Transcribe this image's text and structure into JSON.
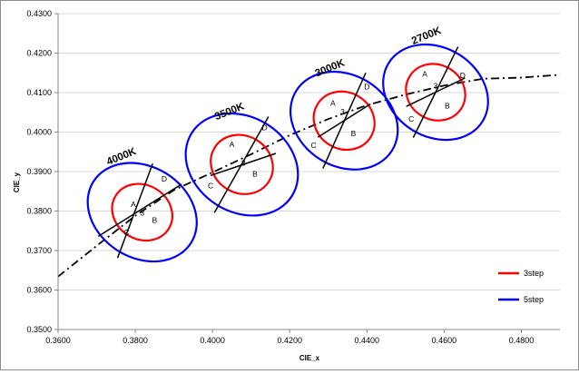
{
  "chart_data": {
    "type": "scatter",
    "title": "",
    "xlabel": "CIE_x",
    "ylabel": "CIE_y",
    "xlim": [
      0.36,
      0.49
    ],
    "ylim": [
      0.35,
      0.43
    ],
    "x_ticks": [
      "0.3600",
      "0.3800",
      "0.4000",
      "0.4200",
      "0.4400",
      "0.4600",
      "0.4800"
    ],
    "y_ticks": [
      "0.3500",
      "0.3600",
      "0.3700",
      "0.3800",
      "0.3900",
      "0.4000",
      "0.4100",
      "0.4200",
      "0.4300"
    ],
    "grid": "horizontal",
    "legend_position": "bottom-right",
    "colors": {
      "3step": "#ff0000",
      "5step": "#0000ff",
      "planckian": "#000000",
      "grid": "#d9d9d9"
    },
    "planckian_locus": {
      "x": [
        0.36,
        0.37,
        0.38,
        0.39,
        0.4,
        0.41,
        0.42,
        0.43,
        0.44,
        0.45,
        0.46,
        0.47,
        0.48,
        0.49
      ],
      "y": [
        0.3634,
        0.3712,
        0.3788,
        0.3853,
        0.3898,
        0.3944,
        0.3992,
        0.4033,
        0.4068,
        0.4095,
        0.4118,
        0.4135,
        0.4138,
        0.4145
      ]
    },
    "cct_groups": [
      {
        "cct": "4000K",
        "center": [
          0.3818,
          0.3797
        ],
        "ellipse_3step": {
          "rx": 0.007,
          "ry": 0.0079,
          "angle": 58
        },
        "ellipse_5step": {
          "rx": 0.0118,
          "ry": 0.0146,
          "angle": 58
        },
        "iso_lines": [
          [
            0.3845,
            0.392,
            0.3754,
            0.3681
          ],
          [
            0.3704,
            0.3736,
            0.392,
            0.3868
          ]
        ],
        "points": {
          "A": [
            0.3795,
            0.381
          ],
          "B": [
            0.385,
            0.377
          ],
          "C": [
            0.3777,
            0.3739
          ],
          "D": [
            0.3875,
            0.3875
          ],
          "3": [
            0.3818,
            0.3789
          ]
        },
        "label_at": [
          0.373,
          0.3916
        ]
      },
      {
        "cct": "3500K",
        "center": [
          0.4076,
          0.3918
        ],
        "ellipse_3step": {
          "rx": 0.0074,
          "ry": 0.0081,
          "angle": 58
        },
        "ellipse_5step": {
          "rx": 0.0123,
          "ry": 0.015,
          "angle": 58
        },
        "iso_lines": [
          [
            0.4145,
            0.4039,
            0.4005,
            0.3796
          ],
          [
            0.3995,
            0.389,
            0.4164,
            0.3946
          ]
        ],
        "points": {
          "A": [
            0.405,
            0.3962
          ],
          "B": [
            0.411,
            0.3887
          ],
          "C": [
            0.3995,
            0.3858
          ],
          "D": [
            0.4135,
            0.4005
          ],
          "3": [
            0.408,
            0.3915
          ]
        },
        "label_at": [
          0.401,
          0.403
        ]
      },
      {
        "cct": "3000K",
        "center": [
          0.4341,
          0.4029
        ],
        "ellipse_3step": {
          "rx": 0.0073,
          "ry": 0.0079,
          "angle": 58
        },
        "ellipse_5step": {
          "rx": 0.0118,
          "ry": 0.0143,
          "angle": 58
        },
        "iso_lines": [
          [
            0.4397,
            0.415,
            0.4286,
            0.3908
          ],
          [
            0.4273,
            0.3987,
            0.4409,
            0.4071
          ]
        ],
        "points": {
          "A": [
            0.4312,
            0.4067
          ],
          "B": [
            0.4365,
            0.399
          ],
          "C": [
            0.4262,
            0.396
          ],
          "D": [
            0.44,
            0.4108
          ],
          "3": [
            0.4337,
            0.4045
          ]
        },
        "label_at": [
          0.427,
          0.414
        ]
      },
      {
        "cct": "2700K",
        "center": [
          0.4578,
          0.4101
        ],
        "ellipse_3step": {
          "rx": 0.0071,
          "ry": 0.0077,
          "angle": 58
        },
        "ellipse_5step": {
          "rx": 0.0115,
          "ry": 0.014,
          "angle": 58
        },
        "iso_lines": [
          [
            0.4636,
            0.4216,
            0.452,
            0.3986
          ],
          [
            0.4502,
            0.4065,
            0.4654,
            0.4137
          ]
        ],
        "points": {
          "A": [
            0.455,
            0.414
          ],
          "B": [
            0.4608,
            0.406
          ],
          "C": [
            0.4515,
            0.4027
          ],
          "D": [
            0.4648,
            0.4137
          ],
          "3": [
            0.4578,
            0.411
          ]
        },
        "label_at": [
          0.452,
          0.4222
        ]
      }
    ],
    "series": [
      {
        "name": "3step",
        "color": "#ff0000"
      },
      {
        "name": "5step",
        "color": "#0000ff"
      }
    ]
  }
}
